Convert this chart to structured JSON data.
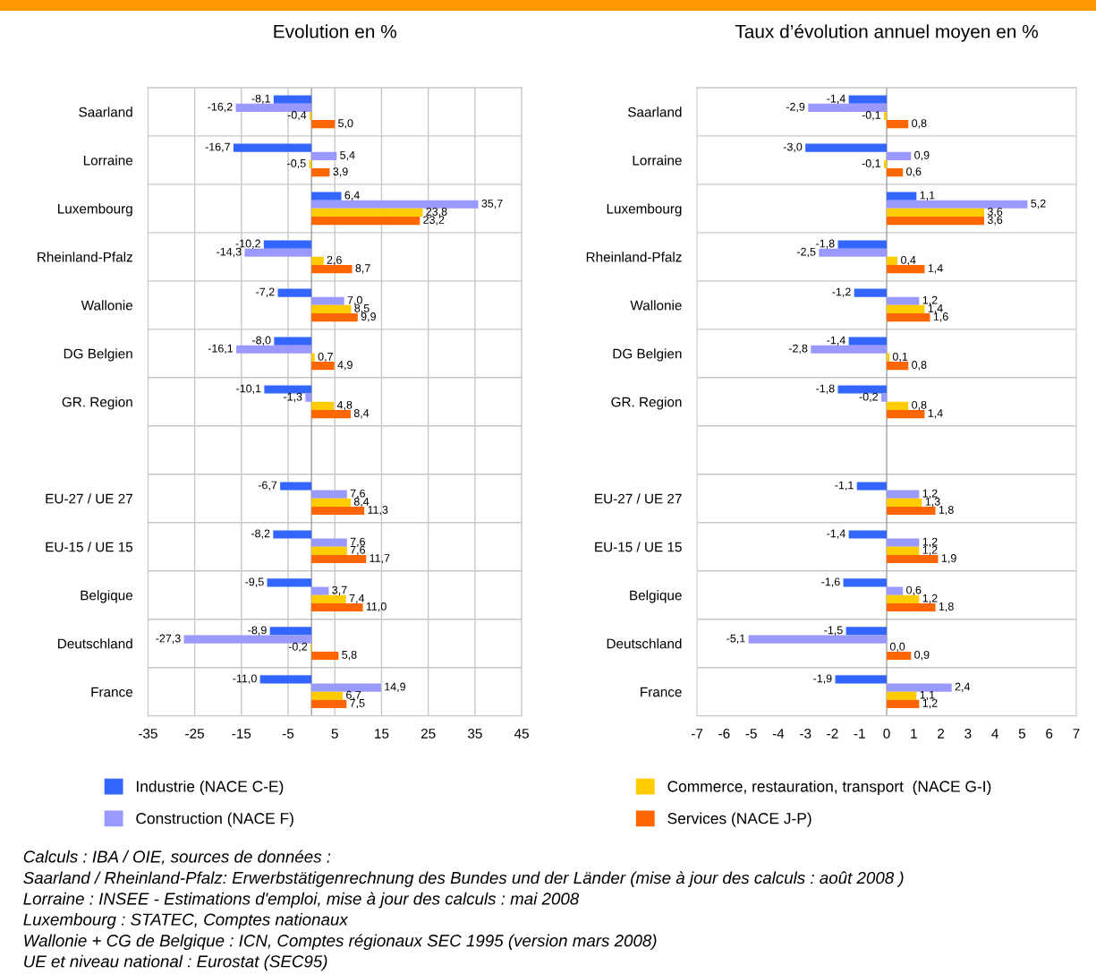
{
  "chart_data": [
    {
      "type": "bar",
      "orientation": "horizontal",
      "title": "Evolution en %",
      "categories": [
        "Saarland",
        "Lorraine",
        "Luxembourg",
        "Rheinland-Pfalz",
        "Wallonie",
        "DG Belgien",
        "GR. Region",
        null,
        "EU-27 / UE 27",
        "EU-15 / UE 15",
        "Belgique",
        "Deutschland",
        "France"
      ],
      "series": [
        {
          "name": "Industrie (NACE C-E)",
          "color": "#3366ff",
          "values": [
            -8.1,
            -16.7,
            6.4,
            -10.2,
            -7.2,
            -8.0,
            -10.1,
            null,
            -6.7,
            -8.2,
            -9.5,
            -8.9,
            -11.0
          ],
          "value_labels": [
            "-8,1",
            "-16,7",
            "6,4",
            "-10,2",
            "-7,2",
            "-8,0",
            "-10,1",
            null,
            "-6,7",
            "-8,2",
            "-9,5",
            "-8,9",
            "-11,0"
          ]
        },
        {
          "name": "Construction (NACE F)",
          "color": "#9999ff",
          "values": [
            -16.2,
            5.4,
            35.7,
            -14.3,
            7.0,
            -16.1,
            -1.3,
            null,
            7.6,
            7.6,
            3.7,
            -27.3,
            14.9
          ],
          "value_labels": [
            "-16,2",
            "5,4",
            "35,7",
            "-14,3",
            "7,0",
            "-16,1",
            "-1,3",
            null,
            "7,6",
            "7,6",
            "3,7",
            "-27,3",
            "14,9"
          ]
        },
        {
          "name": "Commerce, restauration, transport  (NACE G-I)",
          "color": "#ffcc00",
          "values": [
            -0.4,
            -0.5,
            23.8,
            2.6,
            8.5,
            0.7,
            4.8,
            null,
            8.4,
            7.6,
            7.4,
            -0.2,
            6.7
          ],
          "value_labels": [
            "-0,4",
            "-0,5",
            "23,8",
            "2,6",
            "8,5",
            "0,7",
            "4,8",
            null,
            "8,4",
            "7,6",
            "7,4",
            "-0,2",
            "6,7"
          ]
        },
        {
          "name": "Services (NACE J-P)",
          "color": "#ff6600",
          "values": [
            5.0,
            3.9,
            23.2,
            8.7,
            9.9,
            4.9,
            8.4,
            null,
            11.3,
            11.7,
            11.0,
            5.8,
            7.5
          ],
          "value_labels": [
            "5,0",
            "3,9",
            "23,2",
            "8,7",
            "9,9",
            "4,9",
            "8,4",
            null,
            "11,3",
            "11,7",
            "11,0",
            "5,8",
            "7,5"
          ]
        }
      ],
      "xlim": [
        -35,
        45
      ],
      "xticks": [
        -35,
        -25,
        -15,
        -5,
        5,
        15,
        25,
        35,
        45
      ],
      "grid": true,
      "legend": "bottom",
      "annotations": [
        "Calculs : IBA / OIE, sources de données :",
        "Saarland / Rheinland-Pfalz: Erwerbstätigenrechnung des Bundes und der Länder (mise à jour des calculs : août 2008 )",
        "Lorraine : INSEE - Estimations d'emploi, mise à jour des calculs : mai 2008",
        "Luxembourg : STATEC, Comptes nationaux",
        "Wallonie + CG de Belgique : ICN, Comptes régionaux SEC 1995 (version mars 2008)",
        "UE et niveau national : Eurostat (SEC95)"
      ]
    },
    {
      "type": "bar",
      "orientation": "horizontal",
      "title": "Taux d’évolution annuel moyen en %",
      "categories": [
        "Saarland",
        "Lorraine",
        "Luxembourg",
        "Rheinland-Pfalz",
        "Wallonie",
        "DG Belgien",
        "GR. Region",
        null,
        "EU-27 / UE 27",
        "EU-15 / UE 15",
        "Belgique",
        "Deutschland",
        "France"
      ],
      "series": [
        {
          "color": "#3366ff",
          "values": [
            -1.4,
            -3.0,
            1.1,
            -1.8,
            -1.2,
            -1.4,
            -1.8,
            null,
            -1.1,
            -1.4,
            -1.6,
            -1.5,
            -1.9
          ],
          "value_labels": [
            "-1,4",
            "-3,0",
            "1,1",
            "-1,8",
            "-1,2",
            "-1,4",
            "-1,8",
            null,
            "-1,1",
            "-1,4",
            "-1,6",
            "-1,5",
            "-1,9"
          ]
        },
        {
          "color": "#9999ff",
          "values": [
            -2.9,
            0.9,
            5.2,
            -2.5,
            1.2,
            -2.8,
            -0.2,
            null,
            1.2,
            1.2,
            0.6,
            -5.1,
            2.4
          ],
          "value_labels": [
            "-2,9",
            "0,9",
            "5,2",
            "-2,5",
            "1,2",
            "-2,8",
            "-0,2",
            null,
            "1,2",
            "1,2",
            "0,6",
            "-5,1",
            "2,4"
          ]
        },
        {
          "color": "#ffcc00",
          "values": [
            -0.1,
            -0.1,
            3.6,
            0.4,
            1.4,
            0.1,
            0.8,
            null,
            1.3,
            1.2,
            1.2,
            0.0,
            1.1
          ],
          "value_labels": [
            "-0,1",
            "-0,1",
            "3,6",
            "0,4",
            "1,4",
            "0,1",
            "0,8",
            null,
            "1,3",
            "1,2",
            "1,2",
            "0,0",
            "1,1"
          ]
        },
        {
          "color": "#ff6600",
          "values": [
            0.8,
            0.6,
            3.6,
            1.4,
            1.6,
            0.8,
            1.4,
            null,
            1.8,
            1.9,
            1.8,
            0.9,
            1.2
          ],
          "value_labels": [
            "0,8",
            "0,6",
            "3,6",
            "1,4",
            "1,6",
            "0,8",
            "1,4",
            null,
            "1,8",
            "1,9",
            "1,8",
            "0,9",
            "1,2"
          ]
        }
      ],
      "xlim": [
        -7,
        7
      ],
      "xticks": [
        -7,
        -6,
        -5,
        -4,
        -3,
        -2,
        -1,
        0,
        1,
        2,
        3,
        4,
        5,
        6,
        7
      ],
      "grid": "y"
    }
  ]
}
